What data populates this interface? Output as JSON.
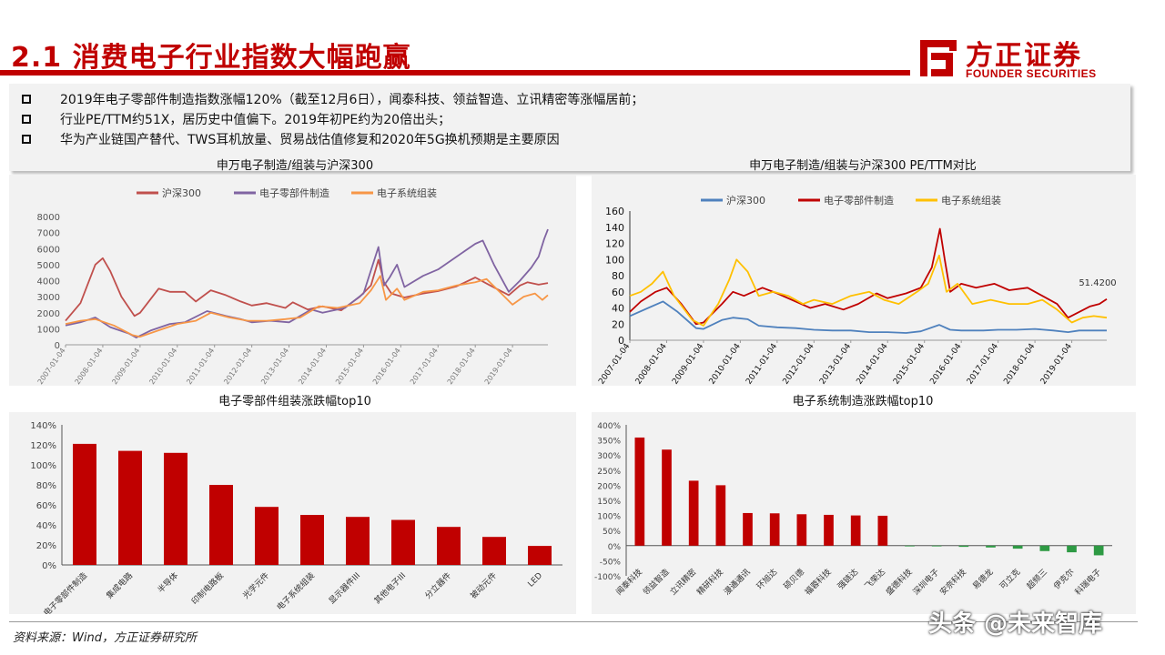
{
  "header": {
    "title": "2.1 消费电子行业指数大幅跑赢"
  },
  "logo": {
    "cn": "方正证券",
    "en": "FOUNDER SECURITIES"
  },
  "bullets": [
    "2019年电子零部件制造指数涨幅120%（截至12月6日），闻泰科技、领益智造、立讯精密等涨幅居前；",
    "行业PE/TTM约51X，居历史中值偏下。2019年初PE约为20倍出头；",
    "华为产业链国产替代、TWS耳机放量、贸易战估值修复和2020年5G换机预期是主要原因"
  ],
  "footer": {
    "source": "资料来源：Wind，方正证券研究所"
  },
  "watermark": "头条 @未来智库",
  "colors": {
    "brand_red": "#c00000",
    "bar_red": "#c00000"
  },
  "chart_data": [
    {
      "type": "line",
      "title": "申万电子制造/组装与沪深300",
      "ylim": [
        0,
        8000
      ],
      "yticks": [
        "0",
        "1000",
        "2000",
        "3000",
        "4000",
        "5000",
        "6000",
        "7000",
        "8000"
      ],
      "x_labels": [
        "2007-01-04",
        "2008-01-04",
        "2009-01-04",
        "2010-01-04",
        "2011-01-04",
        "2012-01-04",
        "2013-01-04",
        "2014-01-04",
        "2015-01-04",
        "2016-01-04",
        "2017-01-04",
        "2018-01-04",
        "2019-01-04"
      ],
      "x_range": [
        2007.0,
        2019.95
      ],
      "legend": "top",
      "series": [
        {
          "name": "沪深300",
          "color": "#c0504d",
          "points": [
            [
              2007.0,
              1500
            ],
            [
              2007.4,
              2600
            ],
            [
              2007.8,
              5000
            ],
            [
              2008.0,
              5400
            ],
            [
              2008.2,
              4600
            ],
            [
              2008.5,
              3000
            ],
            [
              2008.85,
              1800
            ],
            [
              2009.0,
              2000
            ],
            [
              2009.5,
              3500
            ],
            [
              2009.8,
              3300
            ],
            [
              2010.2,
              3300
            ],
            [
              2010.5,
              2700
            ],
            [
              2010.9,
              3400
            ],
            [
              2011.3,
              3100
            ],
            [
              2011.7,
              2700
            ],
            [
              2012.0,
              2450
            ],
            [
              2012.4,
              2600
            ],
            [
              2012.9,
              2300
            ],
            [
              2013.1,
              2650
            ],
            [
              2013.5,
              2200
            ],
            [
              2013.9,
              2400
            ],
            [
              2014.4,
              2150
            ],
            [
              2014.9,
              3000
            ],
            [
              2015.2,
              3700
            ],
            [
              2015.4,
              5300
            ],
            [
              2015.55,
              3900
            ],
            [
              2015.75,
              3200
            ],
            [
              2016.1,
              2950
            ],
            [
              2016.6,
              3200
            ],
            [
              2017.0,
              3350
            ],
            [
              2017.5,
              3650
            ],
            [
              2018.0,
              4200
            ],
            [
              2018.4,
              3700
            ],
            [
              2018.9,
              3100
            ],
            [
              2019.2,
              3700
            ],
            [
              2019.4,
              3900
            ],
            [
              2019.7,
              3750
            ],
            [
              2019.95,
              3850
            ]
          ]
        },
        {
          "name": "电子零部件制造",
          "color": "#8064a2",
          "points": [
            [
              2007.0,
              1200
            ],
            [
              2007.4,
              1400
            ],
            [
              2007.8,
              1700
            ],
            [
              2008.2,
              1100
            ],
            [
              2008.7,
              700
            ],
            [
              2008.9,
              450
            ],
            [
              2009.3,
              900
            ],
            [
              2009.8,
              1300
            ],
            [
              2010.2,
              1400
            ],
            [
              2010.8,
              2100
            ],
            [
              2011.3,
              1800
            ],
            [
              2011.7,
              1600
            ],
            [
              2012.0,
              1400
            ],
            [
              2012.5,
              1500
            ],
            [
              2013.0,
              1400
            ],
            [
              2013.6,
              2200
            ],
            [
              2013.9,
              2000
            ],
            [
              2014.5,
              2300
            ],
            [
              2015.0,
              3200
            ],
            [
              2015.4,
              6100
            ],
            [
              2015.55,
              3700
            ],
            [
              2015.7,
              4200
            ],
            [
              2015.9,
              5000
            ],
            [
              2016.1,
              3600
            ],
            [
              2016.6,
              4300
            ],
            [
              2017.0,
              4700
            ],
            [
              2017.5,
              5500
            ],
            [
              2018.0,
              6300
            ],
            [
              2018.2,
              6500
            ],
            [
              2018.5,
              5000
            ],
            [
              2018.9,
              3300
            ],
            [
              2019.2,
              4000
            ],
            [
              2019.5,
              4800
            ],
            [
              2019.7,
              5500
            ],
            [
              2019.85,
              6600
            ],
            [
              2019.95,
              7200
            ]
          ]
        },
        {
          "name": "电子系统组装",
          "color": "#f79646",
          "points": [
            [
              2007.0,
              1300
            ],
            [
              2007.4,
              1500
            ],
            [
              2007.8,
              1600
            ],
            [
              2008.3,
              1200
            ],
            [
              2008.8,
              600
            ],
            [
              2009.0,
              500
            ],
            [
              2009.5,
              900
            ],
            [
              2010.0,
              1300
            ],
            [
              2010.5,
              1500
            ],
            [
              2010.9,
              2000
            ],
            [
              2011.4,
              1700
            ],
            [
              2011.9,
              1500
            ],
            [
              2012.4,
              1500
            ],
            [
              2012.9,
              1600
            ],
            [
              2013.3,
              1700
            ],
            [
              2013.8,
              2400
            ],
            [
              2014.3,
              2300
            ],
            [
              2014.9,
              2600
            ],
            [
              2015.2,
              3400
            ],
            [
              2015.45,
              4300
            ],
            [
              2015.6,
              2800
            ],
            [
              2015.9,
              3500
            ],
            [
              2016.1,
              2800
            ],
            [
              2016.6,
              3300
            ],
            [
              2017.0,
              3400
            ],
            [
              2017.5,
              3700
            ],
            [
              2018.0,
              3900
            ],
            [
              2018.3,
              4100
            ],
            [
              2018.7,
              3200
            ],
            [
              2019.0,
              2500
            ],
            [
              2019.3,
              3000
            ],
            [
              2019.6,
              3200
            ],
            [
              2019.8,
              2800
            ],
            [
              2019.95,
              3100
            ]
          ]
        }
      ]
    },
    {
      "type": "line",
      "title": "申万电子制造/组装与沪深300 PE/TTM对比",
      "ylim": [
        0,
        160
      ],
      "yticks": [
        "0",
        "20",
        "40",
        "60",
        "80",
        "100",
        "120",
        "140",
        "160"
      ],
      "x_labels": [
        "2007-01-04",
        "2008-01-04",
        "2009-01-04",
        "2010-01-04",
        "2011-01-04",
        "2012-01-04",
        "2013-01-04",
        "2014-01-04",
        "2015-01-04",
        "2016-01-04",
        "2017-01-04",
        "2018-01-04",
        "2019-01-04"
      ],
      "x_range": [
        2007.0,
        2019.95
      ],
      "legend": "top",
      "annotation": "51.4200",
      "series": [
        {
          "name": "沪深300",
          "color": "#4f81bd",
          "points": [
            [
              2007.0,
              30
            ],
            [
              2007.5,
              40
            ],
            [
              2007.9,
              48
            ],
            [
              2008.3,
              35
            ],
            [
              2008.8,
              15
            ],
            [
              2009.0,
              14
            ],
            [
              2009.5,
              25
            ],
            [
              2009.8,
              28
            ],
            [
              2010.2,
              26
            ],
            [
              2010.5,
              18
            ],
            [
              2011.0,
              16
            ],
            [
              2011.5,
              15
            ],
            [
              2012.0,
              13
            ],
            [
              2012.5,
              12
            ],
            [
              2013.0,
              12
            ],
            [
              2013.5,
              10
            ],
            [
              2014.0,
              10
            ],
            [
              2014.5,
              9
            ],
            [
              2014.9,
              11
            ],
            [
              2015.4,
              19
            ],
            [
              2015.7,
              13
            ],
            [
              2016.0,
              12
            ],
            [
              2016.6,
              12
            ],
            [
              2017.0,
              13
            ],
            [
              2017.5,
              13
            ],
            [
              2018.0,
              14
            ],
            [
              2018.5,
              12
            ],
            [
              2018.9,
              10
            ],
            [
              2019.2,
              12
            ],
            [
              2019.6,
              12
            ],
            [
              2019.95,
              12
            ]
          ]
        },
        {
          "name": "电子零部件制造",
          "color": "#c00000",
          "points": [
            [
              2007.0,
              35
            ],
            [
              2007.3,
              48
            ],
            [
              2007.7,
              60
            ],
            [
              2008.0,
              65
            ],
            [
              2008.4,
              45
            ],
            [
              2008.8,
              20
            ],
            [
              2009.0,
              22
            ],
            [
              2009.5,
              45
            ],
            [
              2009.8,
              60
            ],
            [
              2010.1,
              55
            ],
            [
              2010.6,
              65
            ],
            [
              2011.0,
              58
            ],
            [
              2011.5,
              48
            ],
            [
              2011.9,
              40
            ],
            [
              2012.3,
              45
            ],
            [
              2012.8,
              38
            ],
            [
              2013.2,
              45
            ],
            [
              2013.7,
              58
            ],
            [
              2014.0,
              52
            ],
            [
              2014.5,
              58
            ],
            [
              2014.9,
              65
            ],
            [
              2015.2,
              90
            ],
            [
              2015.42,
              138
            ],
            [
              2015.55,
              100
            ],
            [
              2015.7,
              60
            ],
            [
              2016.0,
              70
            ],
            [
              2016.4,
              65
            ],
            [
              2016.9,
              70
            ],
            [
              2017.3,
              62
            ],
            [
              2017.8,
              65
            ],
            [
              2018.2,
              55
            ],
            [
              2018.6,
              45
            ],
            [
              2018.9,
              28
            ],
            [
              2019.2,
              35
            ],
            [
              2019.5,
              42
            ],
            [
              2019.75,
              45
            ],
            [
              2019.95,
              51
            ]
          ]
        },
        {
          "name": "电子系统组装",
          "color": "#ffc000",
          "points": [
            [
              2007.0,
              55
            ],
            [
              2007.3,
              60
            ],
            [
              2007.6,
              70
            ],
            [
              2007.9,
              85
            ],
            [
              2008.2,
              55
            ],
            [
              2008.7,
              25
            ],
            [
              2009.0,
              18
            ],
            [
              2009.4,
              45
            ],
            [
              2009.7,
              75
            ],
            [
              2009.9,
              100
            ],
            [
              2010.2,
              85
            ],
            [
              2010.5,
              55
            ],
            [
              2010.9,
              60
            ],
            [
              2011.3,
              55
            ],
            [
              2011.7,
              45
            ],
            [
              2012.0,
              50
            ],
            [
              2012.5,
              45
            ],
            [
              2013.0,
              55
            ],
            [
              2013.5,
              60
            ],
            [
              2013.9,
              50
            ],
            [
              2014.3,
              45
            ],
            [
              2014.8,
              60
            ],
            [
              2015.1,
              70
            ],
            [
              2015.4,
              105
            ],
            [
              2015.6,
              60
            ],
            [
              2015.9,
              70
            ],
            [
              2016.3,
              45
            ],
            [
              2016.8,
              50
            ],
            [
              2017.3,
              45
            ],
            [
              2017.8,
              45
            ],
            [
              2018.2,
              50
            ],
            [
              2018.6,
              38
            ],
            [
              2019.0,
              22
            ],
            [
              2019.3,
              28
            ],
            [
              2019.6,
              30
            ],
            [
              2019.95,
              28
            ]
          ]
        }
      ]
    },
    {
      "type": "bar",
      "title": "电子零部件组装涨跌幅top10",
      "ylim": [
        0,
        140
      ],
      "yticks": [
        "0%",
        "20%",
        "40%",
        "60%",
        "80%",
        "100%",
        "120%",
        "140%"
      ],
      "categories": [
        "电子零部件制造",
        "集成电路",
        "半导体",
        "印制电路板",
        "光学元件",
        "电子系统组装",
        "显示器件III",
        "其他电子III",
        "分立器件",
        "被动元件",
        "LED"
      ],
      "values": [
        121,
        114,
        112,
        80,
        58,
        50,
        48,
        45,
        38,
        28,
        19
      ]
    },
    {
      "type": "bar",
      "title": "电子系统制造涨跌幅top10",
      "ylim": [
        -100,
        400
      ],
      "yticks": [
        "-100%",
        "-50%",
        "0%",
        "50%",
        "100%",
        "150%",
        "200%",
        "250%",
        "300%",
        "350%",
        "400%"
      ],
      "categories": [
        "闻泰科技",
        "领益智造",
        "立讯精密",
        "精研科技",
        "漫通通讯",
        "环旭达",
        "硕贝德",
        "福蓉科技",
        "强链达",
        "飞荣达",
        "盛德科技",
        "深圳电子",
        "安奈科技",
        "易德龙",
        "可立克",
        "超频三",
        "伊克尔",
        "科瑞电子"
      ],
      "values": [
        358,
        318,
        215,
        200,
        108,
        107,
        104,
        102,
        100,
        99,
        -1,
        -2,
        -4,
        -6,
        -10,
        -18,
        -22,
        -32
      ]
    }
  ]
}
